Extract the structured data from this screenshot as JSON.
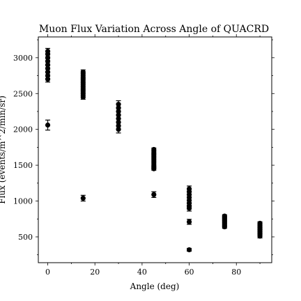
{
  "chart_data": {
    "type": "scatter",
    "title": "Muon Flux Variation Across Angle of QUACRD",
    "xlabel": "Angle (deg)",
    "ylabel": "Flux (events/m^2/min/sr)",
    "xlim": [
      -4,
      95
    ],
    "ylim": [
      140,
      3290
    ],
    "xticks": [
      0,
      20,
      40,
      60,
      80
    ],
    "yticks": [
      500,
      1000,
      1500,
      2000,
      2500,
      3000
    ],
    "grid": false,
    "series": [
      {
        "points": [
          {
            "x": 0,
            "y": 3090,
            "err": 40
          },
          {
            "x": 0,
            "y": 3050,
            "err": 40
          },
          {
            "x": 0,
            "y": 3000,
            "err": 40
          },
          {
            "x": 0,
            "y": 2950,
            "err": 40
          },
          {
            "x": 0,
            "y": 2900,
            "err": 40
          },
          {
            "x": 0,
            "y": 2850,
            "err": 40
          },
          {
            "x": 0,
            "y": 2800,
            "err": 40
          },
          {
            "x": 0,
            "y": 2750,
            "err": 40
          },
          {
            "x": 0,
            "y": 2700,
            "err": 40
          },
          {
            "x": 0,
            "y": 2060,
            "err": 70
          },
          {
            "x": 15,
            "y": 2800,
            "err": 30
          },
          {
            "x": 15,
            "y": 2750,
            "err": 30
          },
          {
            "x": 15,
            "y": 2700,
            "err": 30
          },
          {
            "x": 15,
            "y": 2650,
            "err": 30
          },
          {
            "x": 15,
            "y": 2600,
            "err": 30
          },
          {
            "x": 15,
            "y": 2550,
            "err": 30
          },
          {
            "x": 15,
            "y": 2500,
            "err": 30
          },
          {
            "x": 15,
            "y": 2450,
            "err": 30
          },
          {
            "x": 15,
            "y": 1040,
            "err": 40
          },
          {
            "x": 30,
            "y": 2350,
            "err": 50
          },
          {
            "x": 30,
            "y": 2300,
            "err": 50
          },
          {
            "x": 30,
            "y": 2250,
            "err": 50
          },
          {
            "x": 30,
            "y": 2200,
            "err": 50
          },
          {
            "x": 30,
            "y": 2150,
            "err": 50
          },
          {
            "x": 30,
            "y": 2100,
            "err": 50
          },
          {
            "x": 30,
            "y": 2050,
            "err": 50
          },
          {
            "x": 30,
            "y": 2000,
            "err": 50
          },
          {
            "x": 45,
            "y": 1720,
            "err": 20
          },
          {
            "x": 45,
            "y": 1680,
            "err": 20
          },
          {
            "x": 45,
            "y": 1640,
            "err": 20
          },
          {
            "x": 45,
            "y": 1600,
            "err": 20
          },
          {
            "x": 45,
            "y": 1560,
            "err": 20
          },
          {
            "x": 45,
            "y": 1520,
            "err": 20
          },
          {
            "x": 45,
            "y": 1480,
            "err": 20
          },
          {
            "x": 45,
            "y": 1450,
            "err": 20
          },
          {
            "x": 45,
            "y": 1090,
            "err": 40
          },
          {
            "x": 60,
            "y": 1170,
            "err": 40
          },
          {
            "x": 60,
            "y": 1130,
            "err": 40
          },
          {
            "x": 60,
            "y": 1090,
            "err": 40
          },
          {
            "x": 60,
            "y": 1050,
            "err": 40
          },
          {
            "x": 60,
            "y": 1010,
            "err": 40
          },
          {
            "x": 60,
            "y": 970,
            "err": 40
          },
          {
            "x": 60,
            "y": 930,
            "err": 40
          },
          {
            "x": 60,
            "y": 900,
            "err": 40
          },
          {
            "x": 60,
            "y": 710,
            "err": 35
          },
          {
            "x": 60,
            "y": 320,
            "err": 20
          },
          {
            "x": 75,
            "y": 790,
            "err": 20
          },
          {
            "x": 75,
            "y": 760,
            "err": 20
          },
          {
            "x": 75,
            "y": 730,
            "err": 20
          },
          {
            "x": 75,
            "y": 700,
            "err": 20
          },
          {
            "x": 75,
            "y": 670,
            "err": 20
          },
          {
            "x": 75,
            "y": 640,
            "err": 20
          },
          {
            "x": 90,
            "y": 690,
            "err": 20
          },
          {
            "x": 90,
            "y": 660,
            "err": 20
          },
          {
            "x": 90,
            "y": 630,
            "err": 20
          },
          {
            "x": 90,
            "y": 600,
            "err": 20
          },
          {
            "x": 90,
            "y": 570,
            "err": 20
          },
          {
            "x": 90,
            "y": 540,
            "err": 20
          },
          {
            "x": 90,
            "y": 510,
            "err": 25
          }
        ]
      }
    ]
  }
}
